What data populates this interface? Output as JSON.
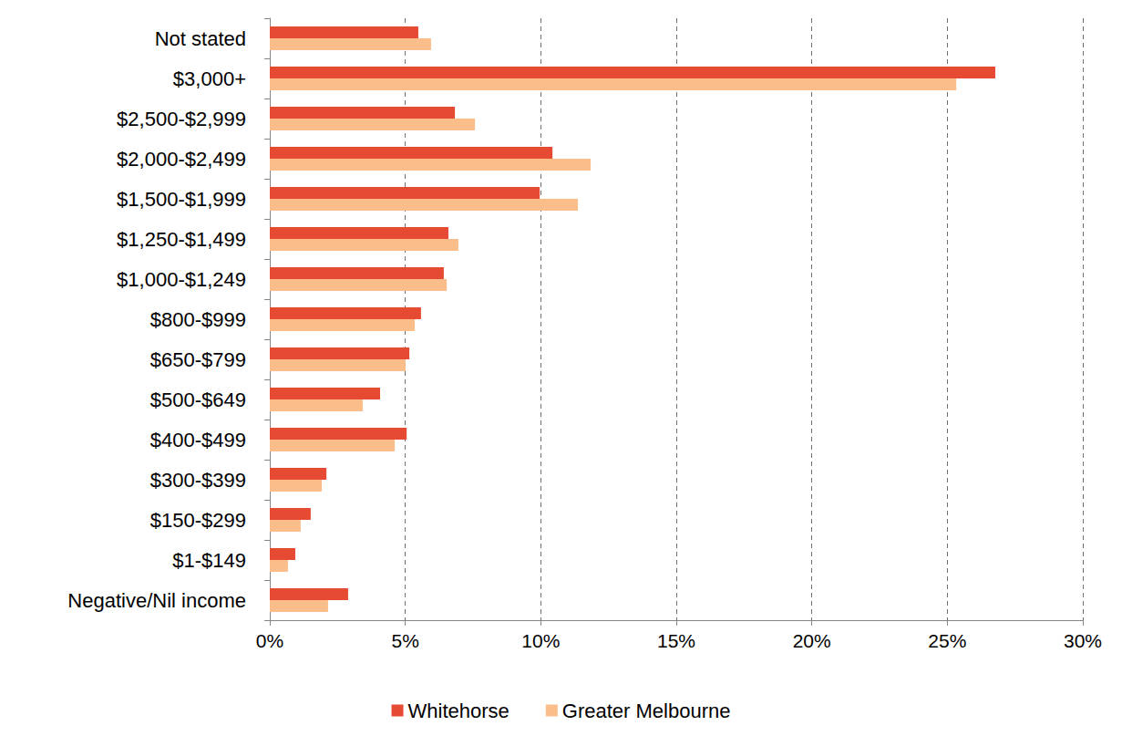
{
  "chart_data": {
    "type": "bar",
    "orientation": "horizontal",
    "categories": [
      "Not stated",
      "$3,000+",
      "$2,500-$2,999",
      "$2,000-$2,499",
      "$1,500-$1,999",
      "$1,250-$1,499",
      "$1,000-$1,249",
      "$800-$999",
      "$650-$799",
      "$500-$649",
      "$400-$499",
      "$300-$399",
      "$150-$299",
      "$1-$149",
      "Negative/Nil income"
    ],
    "series": [
      {
        "name": "Whitehorse",
        "color": "#E64A32",
        "values": [
          5.48,
          26.77,
          6.83,
          10.43,
          9.96,
          6.59,
          6.42,
          5.58,
          5.15,
          4.07,
          5.05,
          2.09,
          1.51,
          0.94,
          2.89
        ]
      },
      {
        "name": "Greater Melbourne",
        "color": "#FBBE8A",
        "values": [
          5.95,
          25.33,
          7.57,
          11.84,
          11.37,
          6.96,
          6.53,
          5.35,
          5.01,
          3.43,
          4.61,
          1.92,
          1.14,
          0.67,
          2.15
        ]
      }
    ],
    "xlim": [
      0,
      30
    ],
    "xticks": [
      {
        "value": 0,
        "label": "0%"
      },
      {
        "value": 5,
        "label": "5%"
      },
      {
        "value": 10,
        "label": "10%"
      },
      {
        "value": 15,
        "label": "15%"
      },
      {
        "value": 20,
        "label": "20%"
      },
      {
        "value": 25,
        "label": "25%"
      },
      {
        "value": 30,
        "label": "30%"
      }
    ],
    "grid": true,
    "legend": "bottom"
  }
}
